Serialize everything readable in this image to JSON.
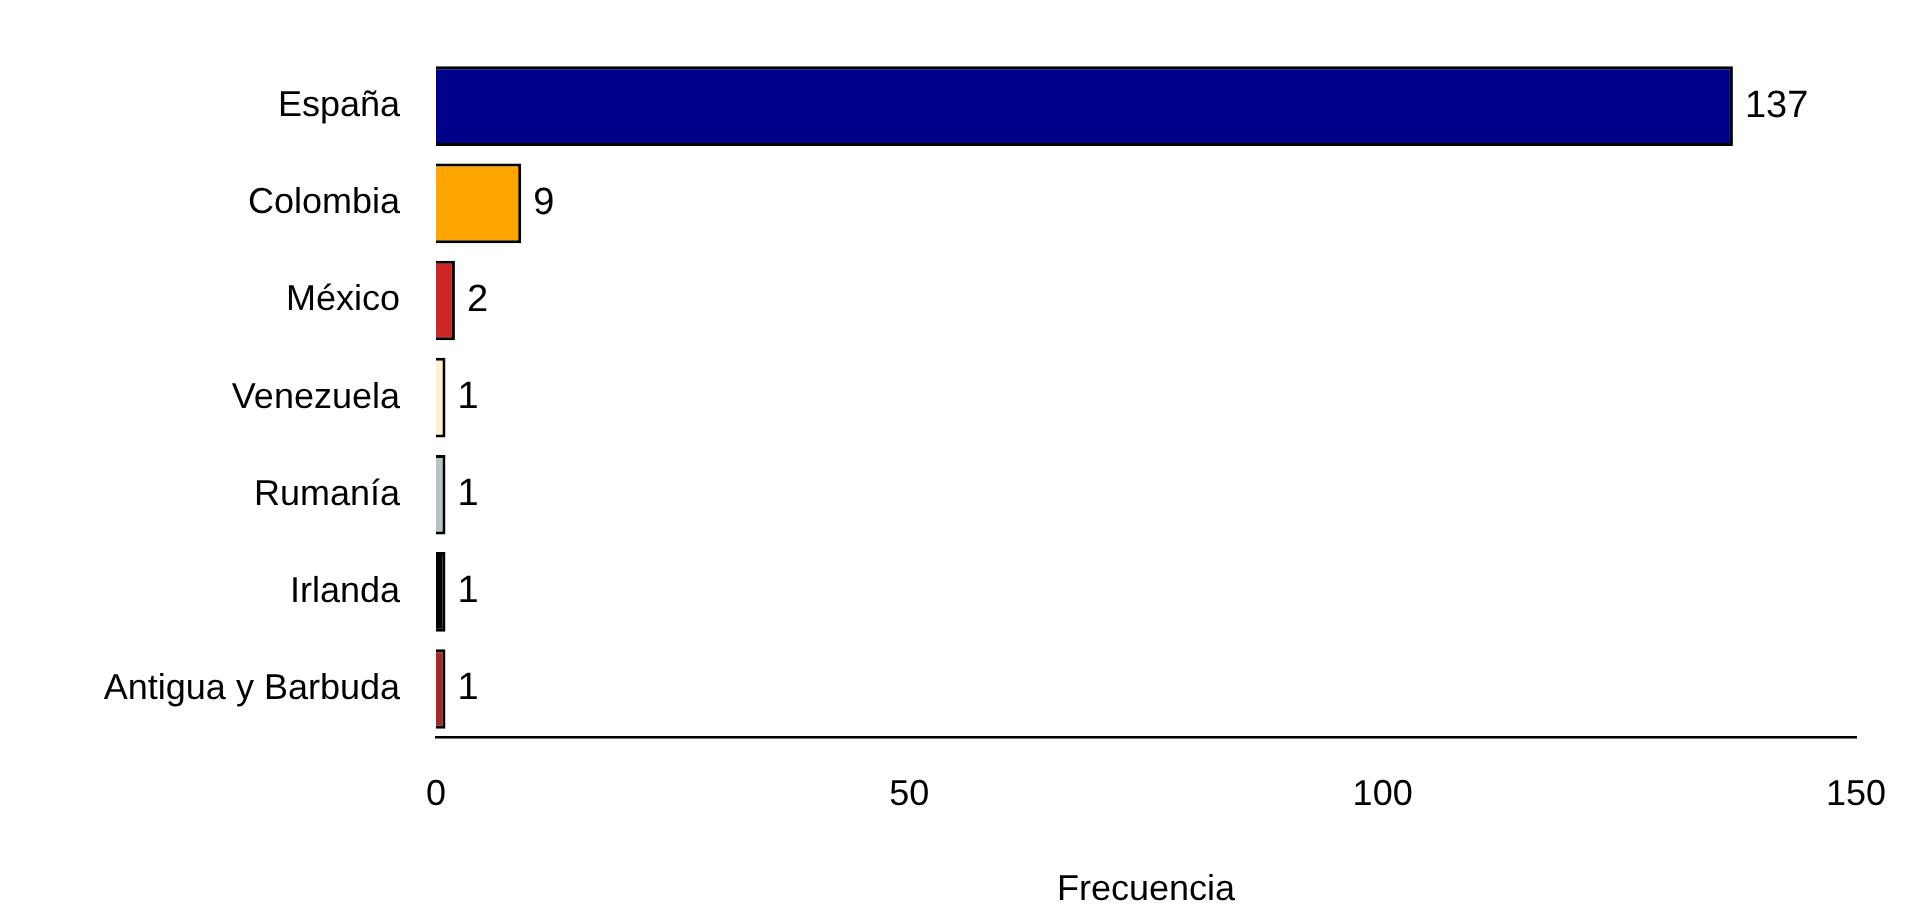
{
  "chart_data": {
    "type": "bar",
    "orientation": "horizontal",
    "xlabel": "Frecuencia",
    "categories": [
      "España",
      "Colombia",
      "México",
      "Venezuela",
      "Rumanía",
      "Irlanda",
      "Antigua y Barbuda"
    ],
    "values": [
      137,
      9,
      2,
      1,
      1,
      1,
      1
    ],
    "colors": [
      "#00008b",
      "#ffa500",
      "#cd2626",
      "#ffefd5",
      "#b4c4c4",
      "#000000",
      "#a52a2a"
    ],
    "xlim": [
      0,
      150
    ],
    "xticks": [
      0,
      50,
      100,
      150
    ],
    "data_labels": true,
    "grid": false,
    "legend": false
  }
}
